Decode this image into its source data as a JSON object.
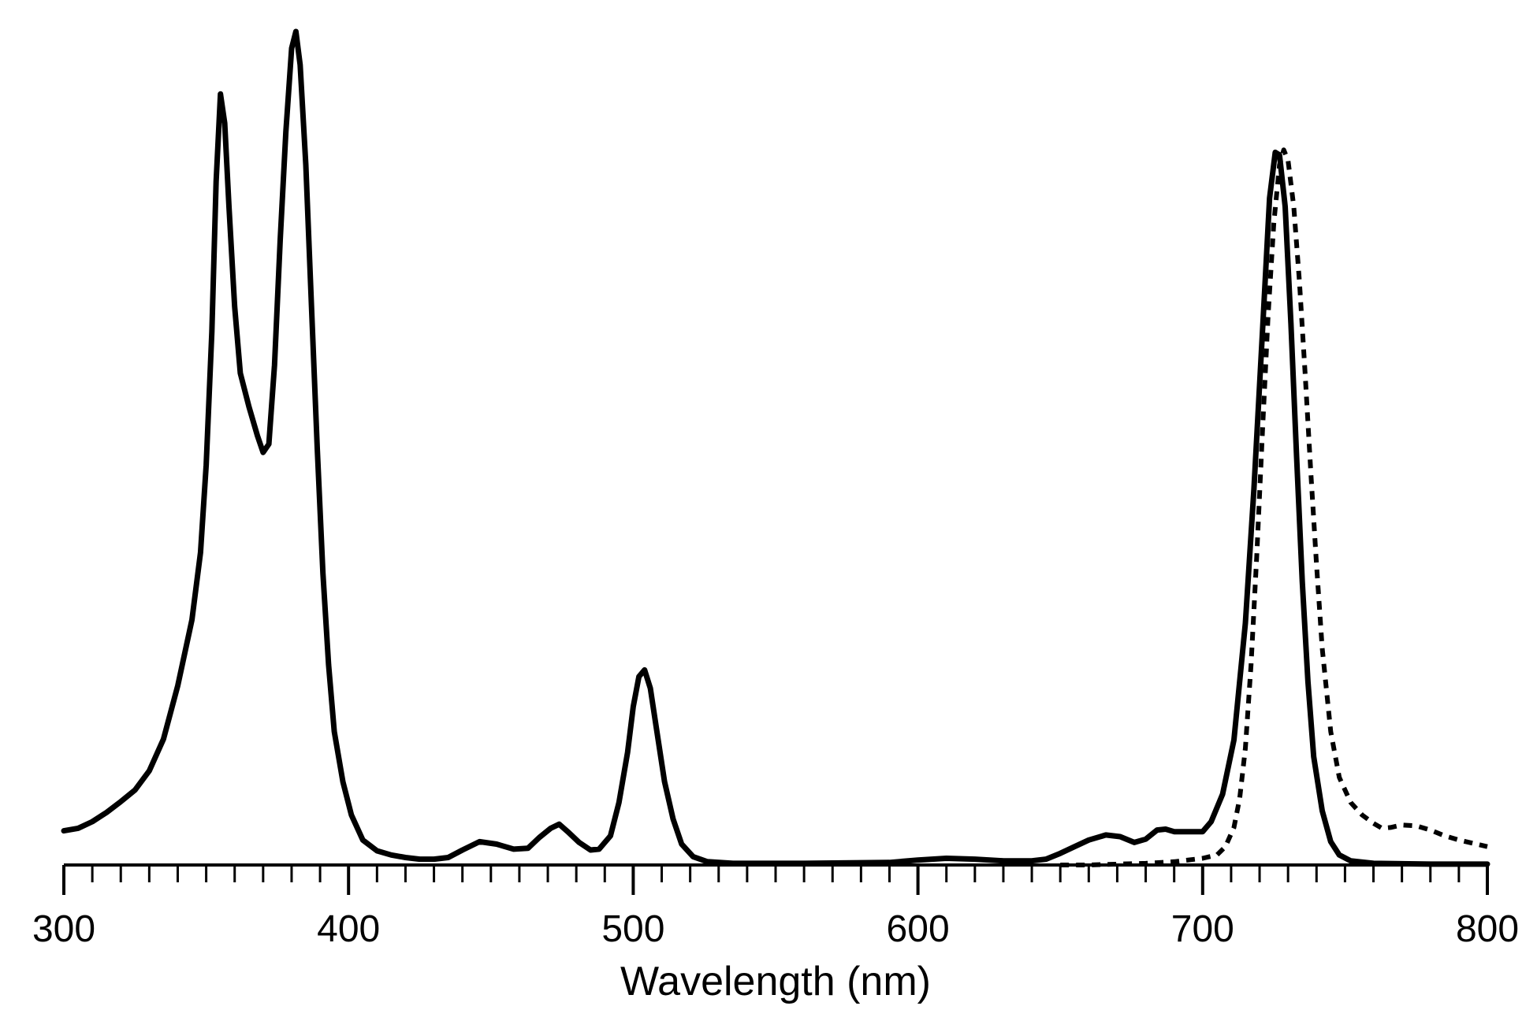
{
  "chart_data": {
    "type": "line",
    "title": "",
    "xlabel": "Wavelength (nm)",
    "ylabel": "",
    "xlim": [
      300,
      800
    ],
    "ylim": [
      0,
      1.0
    ],
    "x_major_ticks": [
      300,
      400,
      500,
      600,
      700,
      800
    ],
    "x_tick_labels": [
      "300",
      "400",
      "500",
      "600",
      "700",
      "800"
    ],
    "x_minor_tick_step": 10,
    "y_axis_shown": false,
    "grid": false,
    "legend": "none",
    "series": [
      {
        "line_style": "solid",
        "color": "#000000",
        "points": [
          [
            300,
            0.041
          ],
          [
            305,
            0.044
          ],
          [
            310,
            0.052
          ],
          [
            315,
            0.063
          ],
          [
            320,
            0.076
          ],
          [
            325,
            0.09
          ],
          [
            330,
            0.113
          ],
          [
            335,
            0.151
          ],
          [
            340,
            0.215
          ],
          [
            345,
            0.294
          ],
          [
            348,
            0.375
          ],
          [
            350,
            0.48
          ],
          [
            352,
            0.64
          ],
          [
            353.5,
            0.82
          ],
          [
            355,
            0.925
          ],
          [
            356.5,
            0.89
          ],
          [
            358,
            0.79
          ],
          [
            360,
            0.67
          ],
          [
            362,
            0.59
          ],
          [
            365,
            0.55
          ],
          [
            368,
            0.515
          ],
          [
            370,
            0.495
          ],
          [
            372,
            0.505
          ],
          [
            374,
            0.6
          ],
          [
            376,
            0.75
          ],
          [
            378,
            0.88
          ],
          [
            380,
            0.98
          ],
          [
            381.5,
            1.0
          ],
          [
            383,
            0.96
          ],
          [
            385,
            0.84
          ],
          [
            387,
            0.67
          ],
          [
            389,
            0.5
          ],
          [
            391,
            0.35
          ],
          [
            393,
            0.24
          ],
          [
            395,
            0.16
          ],
          [
            398,
            0.1
          ],
          [
            401,
            0.06
          ],
          [
            405,
            0.03
          ],
          [
            410,
            0.017
          ],
          [
            415,
            0.012
          ],
          [
            420,
            0.009
          ],
          [
            425,
            0.007
          ],
          [
            430,
            0.007
          ],
          [
            435,
            0.009
          ],
          [
            440,
            0.018
          ],
          [
            446,
            0.028
          ],
          [
            452,
            0.025
          ],
          [
            458,
            0.019
          ],
          [
            463,
            0.02
          ],
          [
            467,
            0.033
          ],
          [
            471,
            0.044
          ],
          [
            474,
            0.049
          ],
          [
            477,
            0.04
          ],
          [
            481,
            0.027
          ],
          [
            485,
            0.018
          ],
          [
            488,
            0.019
          ],
          [
            492,
            0.035
          ],
          [
            495,
            0.075
          ],
          [
            498,
            0.135
          ],
          [
            500,
            0.19
          ],
          [
            502,
            0.226
          ],
          [
            504,
            0.234
          ],
          [
            506,
            0.212
          ],
          [
            508,
            0.167
          ],
          [
            511,
            0.1
          ],
          [
            514,
            0.055
          ],
          [
            517,
            0.025
          ],
          [
            521,
            0.01
          ],
          [
            526,
            0.004
          ],
          [
            535,
            0.002
          ],
          [
            560,
            0.002
          ],
          [
            590,
            0.003
          ],
          [
            600,
            0.006
          ],
          [
            610,
            0.008
          ],
          [
            620,
            0.007
          ],
          [
            630,
            0.005
          ],
          [
            640,
            0.005
          ],
          [
            645,
            0.007
          ],
          [
            650,
            0.014
          ],
          [
            655,
            0.022
          ],
          [
            660,
            0.03
          ],
          [
            666,
            0.036
          ],
          [
            671,
            0.034
          ],
          [
            676,
            0.027
          ],
          [
            680,
            0.031
          ],
          [
            684,
            0.042
          ],
          [
            687,
            0.043
          ],
          [
            690,
            0.04
          ],
          [
            695,
            0.04
          ],
          [
            700,
            0.04
          ],
          [
            703,
            0.052
          ],
          [
            707,
            0.085
          ],
          [
            711,
            0.15
          ],
          [
            715,
            0.29
          ],
          [
            718,
            0.45
          ],
          [
            721,
            0.64
          ],
          [
            723.5,
            0.8
          ],
          [
            725.5,
            0.855
          ],
          [
            727,
            0.852
          ],
          [
            729,
            0.79
          ],
          [
            731,
            0.65
          ],
          [
            733,
            0.49
          ],
          [
            735,
            0.34
          ],
          [
            737,
            0.22
          ],
          [
            739,
            0.13
          ],
          [
            742,
            0.065
          ],
          [
            745,
            0.028
          ],
          [
            748,
            0.012
          ],
          [
            752,
            0.005
          ],
          [
            760,
            0.002
          ],
          [
            780,
            0.001
          ],
          [
            800,
            0.001
          ]
        ]
      },
      {
        "line_style": "dashed",
        "color": "#000000",
        "points": [
          [
            650,
            0.0
          ],
          [
            660,
            0.0
          ],
          [
            670,
            0.001
          ],
          [
            680,
            0.002
          ],
          [
            690,
            0.004
          ],
          [
            700,
            0.008
          ],
          [
            705,
            0.012
          ],
          [
            708,
            0.022
          ],
          [
            711,
            0.045
          ],
          [
            713,
            0.08
          ],
          [
            715,
            0.14
          ],
          [
            717,
            0.24
          ],
          [
            719,
            0.37
          ],
          [
            721,
            0.52
          ],
          [
            723,
            0.66
          ],
          [
            725,
            0.77
          ],
          [
            727,
            0.84
          ],
          [
            728.5,
            0.858
          ],
          [
            730,
            0.845
          ],
          [
            732,
            0.79
          ],
          [
            734,
            0.7
          ],
          [
            736,
            0.59
          ],
          [
            738,
            0.47
          ],
          [
            740,
            0.36
          ],
          [
            742,
            0.26
          ],
          [
            745,
            0.16
          ],
          [
            748,
            0.105
          ],
          [
            752,
            0.075
          ],
          [
            756,
            0.06
          ],
          [
            760,
            0.05
          ],
          [
            763,
            0.044
          ],
          [
            766,
            0.045
          ],
          [
            770,
            0.048
          ],
          [
            775,
            0.047
          ],
          [
            780,
            0.042
          ],
          [
            785,
            0.035
          ],
          [
            790,
            0.03
          ],
          [
            795,
            0.026
          ],
          [
            800,
            0.022
          ]
        ]
      }
    ]
  }
}
